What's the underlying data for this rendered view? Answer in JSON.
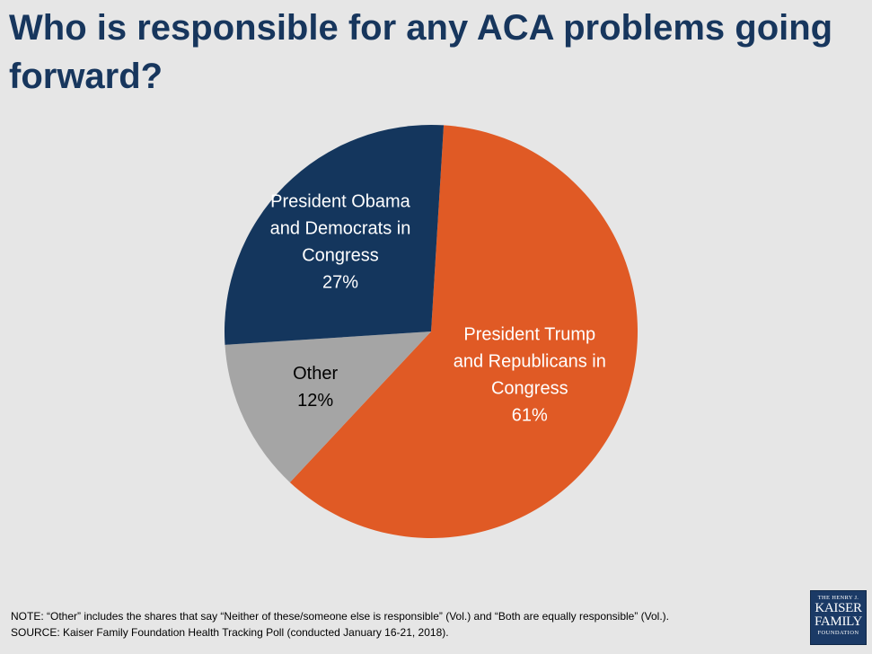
{
  "chart_data": {
    "type": "pie",
    "title": "Who is responsible for any ACA problems going forward?",
    "slices": [
      {
        "name": "President Trump and Republicans in Congress",
        "label_lines": [
          "President Trump",
          "and Republicans in",
          "Congress",
          "61%"
        ],
        "value": 61,
        "color": "#e05a25",
        "text_color": "#ffffff"
      },
      {
        "name": "Other",
        "label_lines": [
          "Other",
          "12%"
        ],
        "value": 12,
        "color": "#a5a5a5",
        "text_color": "#000000"
      },
      {
        "name": "President Obama and Democrats in Congress",
        "label_lines": [
          "President Obama",
          "and Democrats in",
          "Congress",
          "27%"
        ],
        "value": 27,
        "color": "#14365d",
        "text_color": "#ffffff"
      }
    ],
    "start_angle_deg": 3.5,
    "direction": "clockwise",
    "legend": "none"
  },
  "notes": {
    "note": "NOTE: “Other” includes the shares that say “Neither of these/someone else is responsible” (Vol.) and “Both are equally responsible” (Vol.).",
    "source": "SOURCE: Kaiser Family Foundation Health Tracking Poll (conducted January 16-21, 2018)."
  },
  "logo": {
    "line1": "THE HENRY J.",
    "line2": "KAISER",
    "line3": "FAMILY",
    "line4": "FOUNDATION"
  }
}
